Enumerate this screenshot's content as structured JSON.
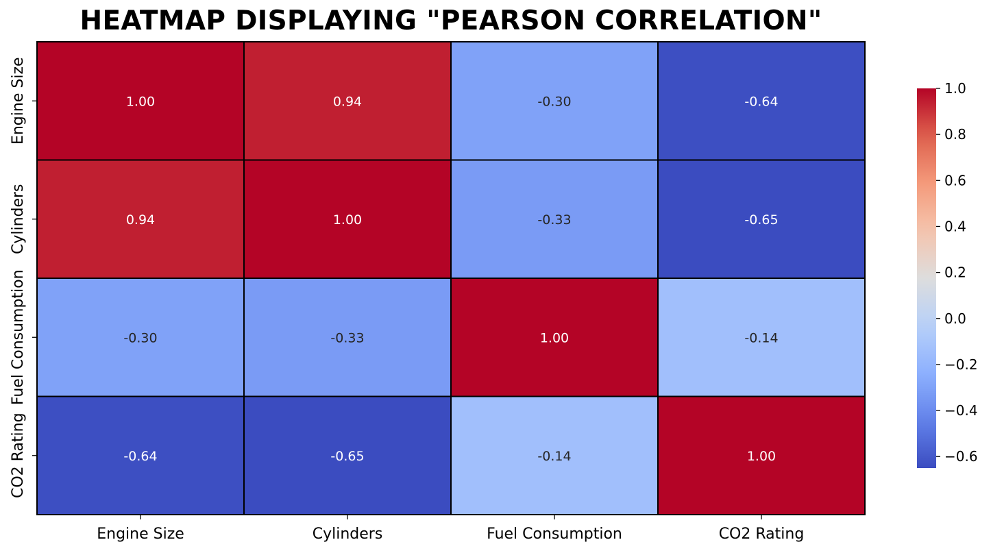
{
  "chart_data": {
    "type": "heatmap",
    "title": "HEATMAP DISPLAYING \"PEARSON CORRELATION\"",
    "x_labels": [
      "Engine Size",
      "Cylinders",
      "Fuel Consumption",
      "CO2 Rating"
    ],
    "y_labels": [
      "Engine Size",
      "Cylinders",
      "Fuel Consumption",
      "CO2 Rating"
    ],
    "values": [
      [
        1.0,
        0.94,
        -0.3,
        -0.64
      ],
      [
        0.94,
        1.0,
        -0.33,
        -0.65
      ],
      [
        -0.3,
        -0.33,
        1.0,
        -0.14
      ],
      [
        -0.64,
        -0.65,
        -0.14,
        1.0
      ]
    ],
    "annotations": [
      [
        "1.00",
        "0.94",
        "-0.30",
        "-0.64"
      ],
      [
        "0.94",
        "1.00",
        "-0.33",
        "-0.65"
      ],
      [
        "-0.30",
        "-0.33",
        "1.00",
        "-0.14"
      ],
      [
        "-0.64",
        "-0.65",
        "-0.14",
        "1.00"
      ]
    ],
    "colormap": "coolwarm",
    "vmin": -0.65,
    "vmax": 1.0,
    "colorbar": {
      "ticks": [
        1.0,
        0.8,
        0.6,
        0.4,
        0.2,
        0.0,
        -0.2,
        -0.4,
        -0.6
      ],
      "tick_labels": [
        "1.0",
        "0.8",
        "0.6",
        "0.4",
        "0.2",
        "0.0",
        "−0.2",
        "−0.4",
        "−0.6"
      ]
    },
    "cell_border_color": "#000000",
    "legend_position": "right"
  }
}
